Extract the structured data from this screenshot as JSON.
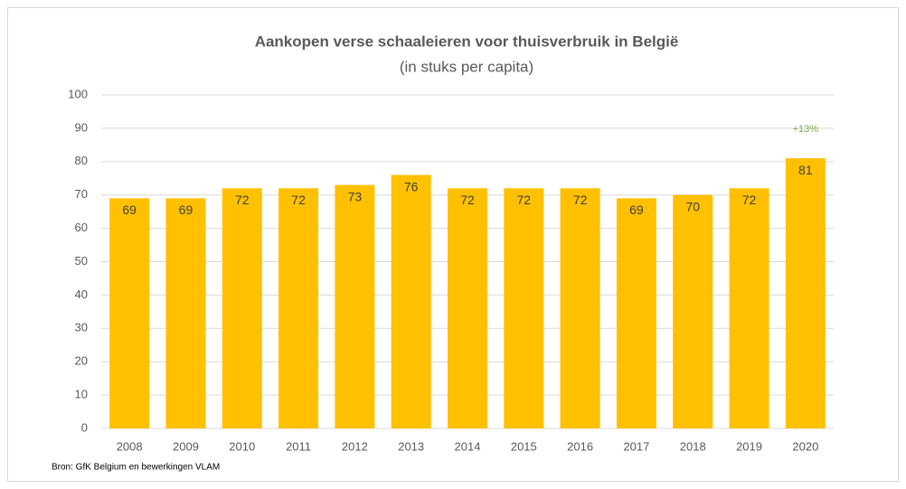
{
  "chart_data": {
    "type": "bar",
    "title": "Aankopen verse schaaleieren voor thuisverbruik in België",
    "subtitle": "(in stuks per capita)",
    "categories": [
      "2008",
      "2009",
      "2010",
      "2011",
      "2012",
      "2013",
      "2014",
      "2015",
      "2016",
      "2017",
      "2018",
      "2019",
      "2020"
    ],
    "values": [
      69,
      69,
      72,
      72,
      73,
      76,
      72,
      72,
      72,
      69,
      70,
      72,
      81
    ],
    "color": "#ffc000",
    "ylim": [
      0,
      100
    ],
    "yticks": [
      0,
      10,
      20,
      30,
      40,
      50,
      60,
      70,
      80,
      90,
      100
    ],
    "grid": true,
    "annotation": "+13%",
    "source": "Bron: GfK Belgium en bewerkingen VLAM"
  }
}
